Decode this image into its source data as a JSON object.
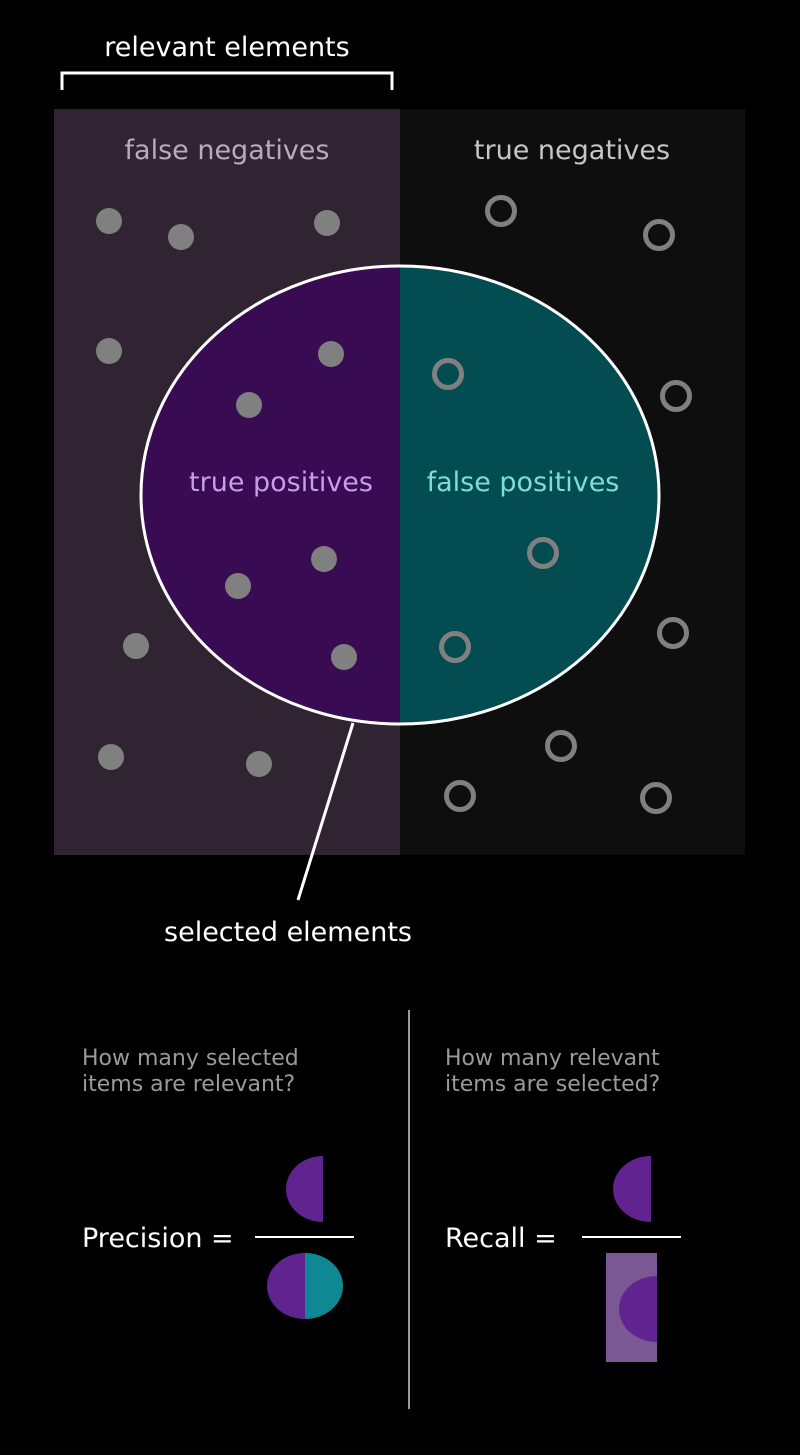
{
  "labels": {
    "relevant": "relevant elements",
    "false_negatives": "false negatives",
    "true_negatives": "true negatives",
    "true_positives": "true positives",
    "false_positives": "false positives",
    "selected": "selected elements"
  },
  "questions": {
    "precision_line1": "How many selected",
    "precision_line2": "items are relevant?",
    "recall_line1": "How many relevant",
    "recall_line2": "items are selected?"
  },
  "formulas": {
    "precision": "Precision =",
    "recall": "Recall ="
  },
  "colors": {
    "background": "#000000",
    "false_negative_region": "#302432",
    "true_negative_region": "#0e0e0e",
    "true_positive_fill": "#380b52",
    "false_positive_fill": "#034d52",
    "dot": "#808080",
    "icon_purple": "#612390",
    "icon_teal": "#0e8892",
    "icon_light_purple": "#7a5894"
  }
}
